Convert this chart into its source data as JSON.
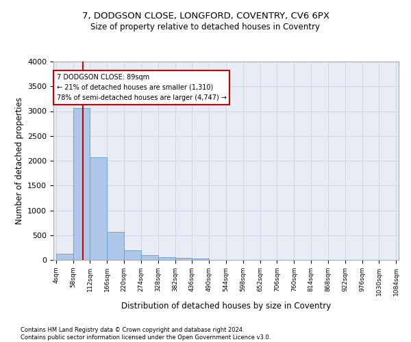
{
  "title1": "7, DODGSON CLOSE, LONGFORD, COVENTRY, CV6 6PX",
  "title2": "Size of property relative to detached houses in Coventry",
  "xlabel": "Distribution of detached houses by size in Coventry",
  "ylabel": "Number of detached properties",
  "bar_edges": [
    4,
    58,
    112,
    166,
    220,
    274,
    328,
    382,
    436,
    490,
    544,
    598,
    652,
    706,
    760,
    814,
    868,
    922,
    976,
    1030,
    1084
  ],
  "bar_heights": [
    130,
    3065,
    2065,
    560,
    200,
    90,
    55,
    40,
    30,
    0,
    0,
    0,
    0,
    0,
    0,
    0,
    0,
    0,
    0,
    0
  ],
  "bar_color": "#aec6e8",
  "bar_edge_color": "#5a9fd4",
  "grid_color": "#d0d8e8",
  "background_color": "#e8edf5",
  "vline_x": 89,
  "vline_color": "#cc0000",
  "annotation_text": "7 DODGSON CLOSE: 89sqm\n← 21% of detached houses are smaller (1,310)\n78% of semi-detached houses are larger (4,747) →",
  "annotation_box_color": "#cc0000",
  "ylim": [
    0,
    4000
  ],
  "yticks": [
    0,
    500,
    1000,
    1500,
    2000,
    2500,
    3000,
    3500,
    4000
  ],
  "footer1": "Contains HM Land Registry data © Crown copyright and database right 2024.",
  "footer2": "Contains public sector information licensed under the Open Government Licence v3.0."
}
